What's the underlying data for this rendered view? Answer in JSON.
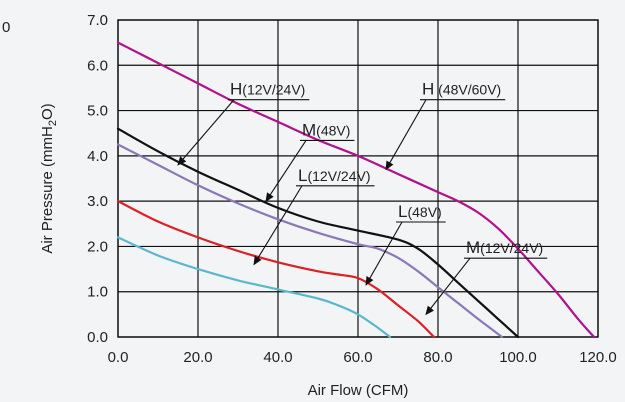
{
  "stray_label": "0",
  "chart_data": {
    "type": "line",
    "title": "",
    "xlabel": "Air Flow (CFM)",
    "ylabel_parts": [
      "Air Pressure (mmH",
      "2",
      "O)"
    ],
    "xlim": [
      0,
      120
    ],
    "ylim": [
      0,
      7
    ],
    "x_ticks": [
      0,
      20,
      40,
      60,
      80,
      100,
      120
    ],
    "x_tick_labels": [
      "0.0",
      "20.0",
      "40.0",
      "60.0",
      "80.0",
      "100.0",
      "120.0"
    ],
    "y_ticks": [
      0,
      1,
      2,
      3,
      4,
      5,
      6,
      7
    ],
    "y_tick_labels": [
      "0.0",
      "1.0",
      "2.0",
      "3.0",
      "4.0",
      "5.0",
      "6.0",
      "7.0"
    ],
    "grid": true,
    "series": [
      {
        "name": "H (48V/60V)",
        "color": "#b0118e",
        "x": [
          0,
          10,
          20,
          30,
          40,
          50,
          60,
          70,
          80,
          85,
          90,
          95,
          100,
          105,
          110,
          115,
          119
        ],
        "y": [
          6.5,
          6.05,
          5.6,
          5.15,
          4.75,
          4.35,
          4.0,
          3.6,
          3.2,
          3.0,
          2.75,
          2.4,
          1.95,
          1.45,
          0.95,
          0.4,
          0.0
        ]
      },
      {
        "name": "H(12V/24V)",
        "color": "#111111",
        "x": [
          0,
          10,
          20,
          30,
          40,
          50,
          60,
          70,
          75,
          80,
          85,
          90,
          95,
          100
        ],
        "y": [
          4.6,
          4.1,
          3.65,
          3.25,
          2.85,
          2.55,
          2.35,
          2.15,
          1.95,
          1.6,
          1.2,
          0.8,
          0.4,
          0.0
        ]
      },
      {
        "name": "M(48V)",
        "color": "#8a78b8",
        "x": [
          0,
          10,
          20,
          30,
          40,
          50,
          60,
          65,
          70,
          75,
          80,
          85,
          90,
          96
        ],
        "y": [
          4.25,
          3.8,
          3.35,
          2.95,
          2.6,
          2.3,
          2.05,
          1.95,
          1.75,
          1.45,
          1.1,
          0.75,
          0.4,
          0.0
        ]
      },
      {
        "name": "L(12V/24V)",
        "color": "#dd1f26",
        "x": [
          0,
          10,
          20,
          30,
          40,
          50,
          55,
          60,
          65,
          70,
          75,
          79
        ],
        "y": [
          3.0,
          2.55,
          2.2,
          1.9,
          1.65,
          1.45,
          1.38,
          1.3,
          1.05,
          0.7,
          0.35,
          0.0
        ]
      },
      {
        "name": "M(12V/24V)",
        "color": "#5bb7d0",
        "x": [
          0,
          10,
          20,
          30,
          40,
          50,
          55,
          60,
          65,
          68
        ],
        "y": [
          2.2,
          1.8,
          1.5,
          1.25,
          1.05,
          0.85,
          0.7,
          0.5,
          0.2,
          0.0
        ]
      }
    ],
    "annotations": [
      {
        "main": "H",
        "sub": "(12V/24V)",
        "series": "H(12V/24V)",
        "text_at": [
          28,
          5.35
        ],
        "arrow_to": [
          15,
          3.8
        ]
      },
      {
        "main": "H",
        "sub": " (48V/60V)",
        "series": "H (48V/60V)",
        "text_at": [
          76,
          5.35
        ],
        "arrow_to": [
          67,
          3.7
        ]
      },
      {
        "main": "M",
        "sub": "(48V)",
        "series": "M(48V)",
        "text_at": [
          46,
          4.45
        ],
        "arrow_to": [
          37,
          3.0
        ]
      },
      {
        "main": "L",
        "sub": "(12V/24V)",
        "series": "L(12V/24V)",
        "text_at": [
          45,
          3.45
        ],
        "arrow_to": [
          34,
          1.6
        ]
      },
      {
        "main": "L",
        "sub": "(48V)",
        "series": "L(48V)",
        "text_at": [
          70,
          2.65
        ],
        "arrow_to": [
          62,
          1.15
        ]
      },
      {
        "main": "M",
        "sub": "(12V/24V)",
        "series": "M(12V/24V)",
        "text_at": [
          87,
          1.85
        ],
        "arrow_to": [
          77,
          0.5
        ]
      }
    ]
  }
}
